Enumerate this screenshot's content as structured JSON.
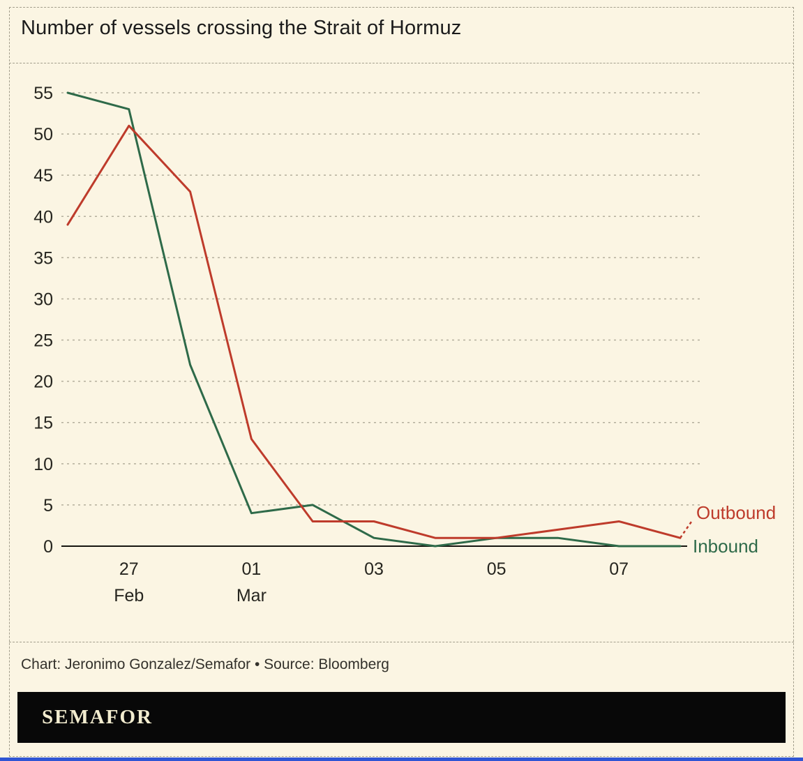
{
  "title": "Number of vessels crossing the Strait of Hormuz",
  "footer": {
    "credit": "Chart: Jeronimo Gonzalez/Semafor • Source: Bloomberg",
    "brand": "SEMAFOR"
  },
  "colors": {
    "background": "#FBF5E3",
    "border": "#A39E8C",
    "grid": "#B3AE9C",
    "axis": "#16150F",
    "text": "#26251F",
    "outbound": "#BE3B2B",
    "inbound": "#2E6A49",
    "brand_bar": "#080808",
    "brand_text": "#F2ECCF",
    "accent_stripe": "#2F55D4"
  },
  "chart_data": {
    "type": "line",
    "title": "Number of vessels crossing the Strait of Hormuz",
    "x": [
      "26 Feb",
      "27 Feb",
      "28 Feb",
      "01 Mar",
      "02 Mar",
      "03 Mar",
      "04 Mar",
      "05 Mar",
      "06 Mar",
      "07 Mar",
      "08 Mar"
    ],
    "x_ticks": [
      {
        "i": 1,
        "day": "27",
        "month": "Feb"
      },
      {
        "i": 3,
        "day": "01",
        "month": "Mar"
      },
      {
        "i": 5,
        "day": "03"
      },
      {
        "i": 7,
        "day": "05"
      },
      {
        "i": 9,
        "day": "07"
      }
    ],
    "ylim": [
      0,
      55
    ],
    "yticks": [
      0,
      5,
      10,
      15,
      20,
      25,
      30,
      35,
      40,
      45,
      50,
      55
    ],
    "grid": "horizontal-dashed",
    "legend_position": "line-end-labels-right",
    "series": [
      {
        "name": "Outbound",
        "color": "#BE3B2B",
        "values": [
          39,
          51,
          43,
          13,
          3,
          3,
          1,
          1,
          2,
          3,
          1
        ],
        "dashed_tail": true
      },
      {
        "name": "Inbound",
        "color": "#2E6A49",
        "values": [
          55,
          53,
          22,
          4,
          5,
          1,
          0,
          1,
          1,
          0,
          0
        ],
        "dashed_tail": false
      }
    ]
  }
}
